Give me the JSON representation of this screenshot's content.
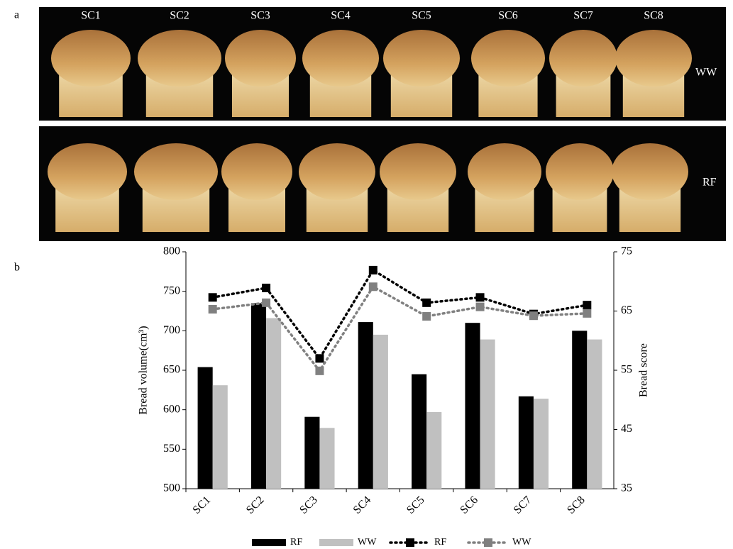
{
  "panel_a": {
    "label": "a",
    "columns": [
      "SC1",
      "SC2",
      "SC3",
      "SC4",
      "SC5",
      "SC6",
      "SC7",
      "SC8"
    ],
    "rows": [
      "WW",
      "RF"
    ]
  },
  "chart_data": {
    "type": "combo",
    "panel_label": "b",
    "categories": [
      "SC1",
      "SC2",
      "SC3",
      "SC4",
      "SC5",
      "SC6",
      "SC7",
      "SC8"
    ],
    "ylabel": "Bread volume(cm³)",
    "y2label": "Bread score",
    "ylim": [
      500,
      800
    ],
    "yticks": [
      500,
      550,
      600,
      650,
      700,
      750,
      800
    ],
    "y2lim": [
      35,
      75
    ],
    "y2ticks": [
      35,
      45,
      55,
      65,
      75
    ],
    "grid": false,
    "series": [
      {
        "name": "RF",
        "type": "bar",
        "color": "#000000",
        "values": [
          654,
          735,
          591,
          711,
          645,
          710,
          617,
          700
        ]
      },
      {
        "name": "WW",
        "type": "bar",
        "color": "#c0c0c0",
        "values": [
          631,
          716,
          577,
          695,
          597,
          689,
          614,
          689
        ]
      },
      {
        "name": "RF",
        "type": "line",
        "axis": "y2",
        "color": "#000000",
        "values": [
          67.3,
          68.9,
          57.0,
          71.9,
          66.4,
          67.3,
          64.5,
          66.0
        ]
      },
      {
        "name": "WW",
        "type": "line",
        "axis": "y2",
        "color": "#808080",
        "values": [
          65.3,
          66.4,
          54.9,
          69.1,
          64.1,
          65.7,
          64.2,
          64.6
        ]
      }
    ]
  }
}
